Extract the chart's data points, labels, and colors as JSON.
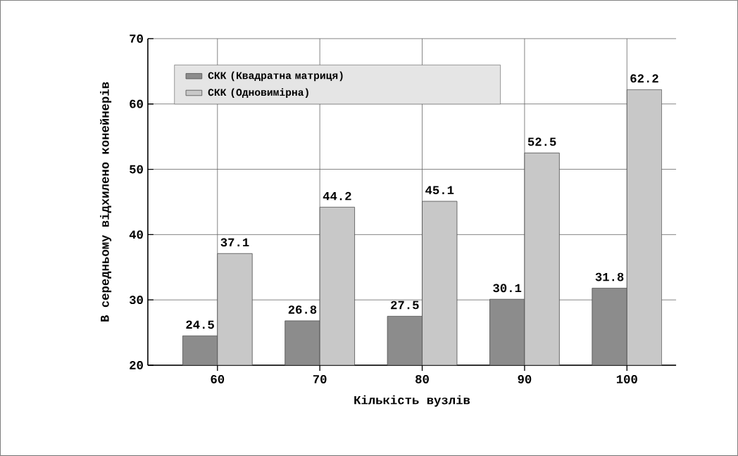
{
  "chart_data": {
    "type": "bar",
    "xlabel": "Кількість вузлів",
    "ylabel": "В середньому відхилено конейнерів",
    "categories": [
      "60",
      "70",
      "80",
      "90",
      "100"
    ],
    "series": [
      {
        "name": "СКК (Квадратна матриця)",
        "color": "#8c8c8c",
        "values": [
          24.5,
          26.8,
          27.5,
          30.1,
          31.8
        ]
      },
      {
        "name": "СКК (Одновимірна)",
        "color": "#c8c8c8",
        "values": [
          37.1,
          44.2,
          45.1,
          52.5,
          62.2
        ]
      }
    ],
    "ylim": [
      20,
      70
    ],
    "yticks": [
      20,
      30,
      40,
      50,
      60,
      70
    ],
    "grid": true,
    "legend": "top left",
    "data_labels": true
  }
}
